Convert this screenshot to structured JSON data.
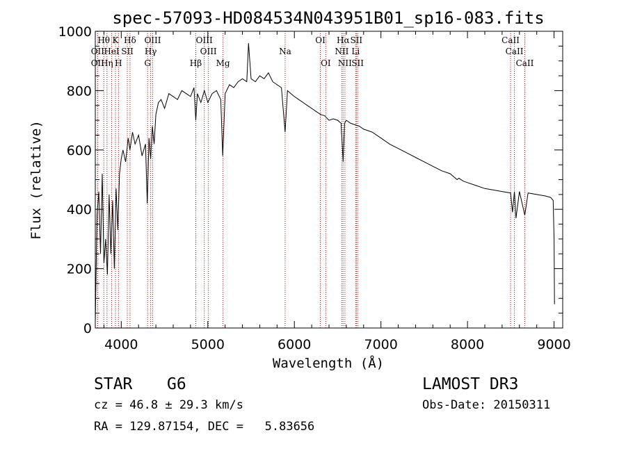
{
  "chart_data": {
    "type": "line",
    "title": "spec-57093-HD084534N043951B01_sp16-083.fits",
    "xlabel": "Wavelength (Å)",
    "ylabel": "Flux (relative)",
    "xlim": [
      3700,
      9100
    ],
    "ylim": [
      0,
      1000
    ],
    "xticks": [
      4000,
      5000,
      6000,
      7000,
      8000,
      9000
    ],
    "yticks": [
      0,
      200,
      400,
      600,
      800,
      1000
    ],
    "series": [
      {
        "name": "spectrum",
        "x": [
          3700,
          3720,
          3740,
          3760,
          3780,
          3800,
          3820,
          3840,
          3860,
          3880,
          3900,
          3920,
          3940,
          3960,
          3980,
          4000,
          4020,
          4050,
          4080,
          4100,
          4130,
          4160,
          4200,
          4240,
          4280,
          4300,
          4320,
          4340,
          4360,
          4380,
          4400,
          4430,
          4460,
          4500,
          4550,
          4600,
          4650,
          4700,
          4750,
          4800,
          4840,
          4861,
          4880,
          4920,
          4960,
          5000,
          5050,
          5100,
          5150,
          5172,
          5200,
          5250,
          5300,
          5350,
          5400,
          5450,
          5470,
          5500,
          5550,
          5600,
          5650,
          5700,
          5750,
          5800,
          5850,
          5893,
          5920,
          5960,
          6000,
          6050,
          6100,
          6150,
          6200,
          6250,
          6300,
          6350,
          6400,
          6450,
          6500,
          6540,
          6563,
          6580,
          6600,
          6650,
          6700,
          6750,
          6800,
          6850,
          6900,
          7000,
          7100,
          7200,
          7300,
          7400,
          7500,
          7600,
          7700,
          7800,
          7880,
          7900,
          7950,
          8000,
          8100,
          8200,
          8300,
          8400,
          8498,
          8520,
          8542,
          8560,
          8600,
          8662,
          8700,
          8800,
          8900,
          8960,
          8990,
          9000,
          9005
        ],
        "values": [
          20,
          380,
          460,
          250,
          520,
          220,
          300,
          180,
          450,
          250,
          430,
          200,
          470,
          330,
          520,
          570,
          600,
          560,
          640,
          600,
          660,
          620,
          650,
          580,
          620,
          420,
          640,
          570,
          680,
          620,
          720,
          760,
          770,
          740,
          790,
          780,
          770,
          800,
          790,
          780,
          810,
          700,
          790,
          760,
          800,
          760,
          790,
          800,
          770,
          580,
          790,
          820,
          810,
          830,
          840,
          830,
          960,
          840,
          830,
          850,
          840,
          860,
          830,
          820,
          810,
          660,
          800,
          790,
          780,
          770,
          760,
          750,
          740,
          730,
          720,
          715,
          700,
          705,
          700,
          690,
          560,
          690,
          700,
          690,
          685,
          680,
          670,
          665,
          660,
          640,
          620,
          605,
          590,
          575,
          560,
          545,
          530,
          520,
          500,
          505,
          495,
          490,
          480,
          470,
          465,
          460,
          455,
          390,
          460,
          370,
          460,
          380,
          455,
          450,
          445,
          440,
          430,
          300,
          80
        ]
      }
    ],
    "lines": [
      {
        "label": "Hθ",
        "x": 3798,
        "row": 1
      },
      {
        "label": "OII",
        "x": 3727,
        "row": 2
      },
      {
        "label": "OII",
        "x": 3727,
        "row": 3
      },
      {
        "label": "Hη",
        "x": 3835,
        "row": 3
      },
      {
        "label": "K",
        "x": 3933,
        "row": 1
      },
      {
        "label": "HeI",
        "x": 3889,
        "row": 2
      },
      {
        "label": "H",
        "x": 3968,
        "row": 3
      },
      {
        "label": "SII",
        "x": 4070,
        "row": 2
      },
      {
        "label": "Hδ",
        "x": 4101,
        "row": 1
      },
      {
        "label": "OIII",
        "x": 4363,
        "row": 1
      },
      {
        "label": "Hγ",
        "x": 4340,
        "row": 2
      },
      {
        "label": "G",
        "x": 4304,
        "row": 3
      },
      {
        "label": "Hβ",
        "x": 4861,
        "row": 3
      },
      {
        "label": "OIII",
        "x": 4959,
        "row": 1
      },
      {
        "label": "OIII",
        "x": 5007,
        "row": 2
      },
      {
        "label": "Mg",
        "x": 5175,
        "row": 3
      },
      {
        "label": "Na",
        "x": 5893,
        "row": 2
      },
      {
        "label": "OI",
        "x": 6300,
        "row": 1
      },
      {
        "label": "OI",
        "x": 6363,
        "row": 3
      },
      {
        "label": "Hα",
        "x": 6563,
        "row": 1
      },
      {
        "label": "NII",
        "x": 6548,
        "row": 2
      },
      {
        "label": "NII",
        "x": 6584,
        "row": 3
      },
      {
        "label": "SII",
        "x": 6716,
        "row": 1
      },
      {
        "label": "Li",
        "x": 6708,
        "row": 2
      },
      {
        "label": "SII",
        "x": 6731,
        "row": 3
      },
      {
        "label": "CaII",
        "x": 8498,
        "row": 1
      },
      {
        "label": "CaII",
        "x": 8542,
        "row": 2
      },
      {
        "label": "CaII",
        "x": 8662,
        "row": 3
      }
    ]
  },
  "info": {
    "class": "STAR",
    "subclass": "G6",
    "survey": "LAMOST DR3",
    "cz": "cz = 46.8 ± 29.3 km/s",
    "obsdate": "Obs-Date: 20150311",
    "radec": "RA = 129.87154, DEC =   5.83656"
  }
}
